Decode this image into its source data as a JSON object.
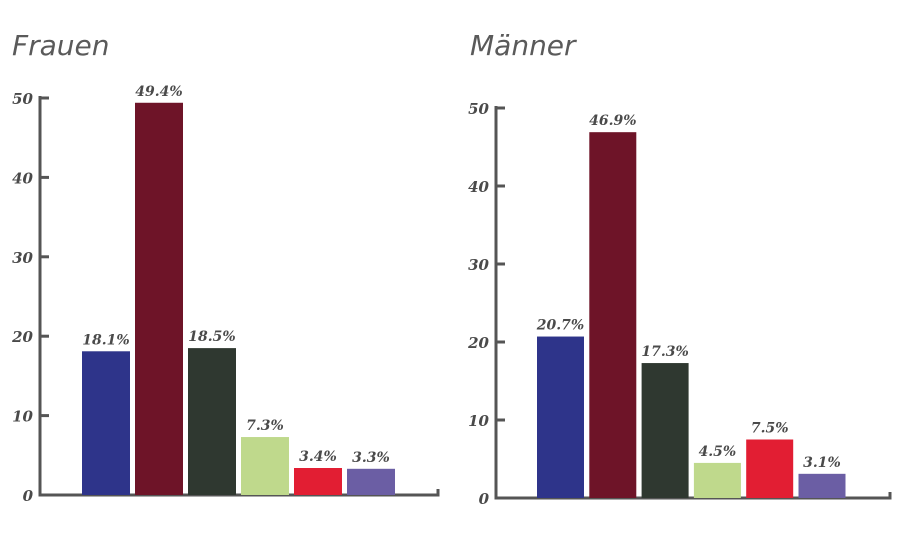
{
  "chart_data": [
    {
      "type": "bar",
      "title": "Frauen",
      "categories": [
        "",
        "",
        "",
        "",
        "",
        ""
      ],
      "values": [
        18.1,
        49.4,
        18.5,
        7.3,
        3.4,
        3.3
      ],
      "labels": [
        "18.1%",
        "49.4%",
        "18.5%",
        "7.3%",
        "3.4%",
        "3.3%"
      ],
      "colors": [
        "#2e348a",
        "#6e1428",
        "#2f3830",
        "#bfd98c",
        "#e21e33",
        "#6b5ea4"
      ],
      "ylim": [
        0,
        50
      ],
      "yticks": [
        0,
        10,
        20,
        30,
        40,
        50
      ],
      "ytick_labels": [
        "0",
        "10",
        "20",
        "30",
        "40",
        "50"
      ],
      "xlabel": "",
      "ylabel": "",
      "grid": false
    },
    {
      "type": "bar",
      "title": "Männer",
      "categories": [
        "",
        "",
        "",
        "",
        "",
        ""
      ],
      "values": [
        20.7,
        46.9,
        17.3,
        4.5,
        7.5,
        3.1
      ],
      "labels": [
        "20.7%",
        "46.9%",
        "17.3%",
        "4.5%",
        "7.5%",
        "3.1%"
      ],
      "colors": [
        "#2e348a",
        "#6e1428",
        "#2f3830",
        "#bfd98c",
        "#e21e33",
        "#6b5ea4"
      ],
      "ylim": [
        0,
        50
      ],
      "yticks": [
        0,
        10,
        20,
        30,
        40,
        50
      ],
      "ytick_labels": [
        "0",
        "10",
        "20",
        "30",
        "40",
        "50"
      ],
      "xlabel": "",
      "ylabel": "",
      "grid": false
    }
  ]
}
